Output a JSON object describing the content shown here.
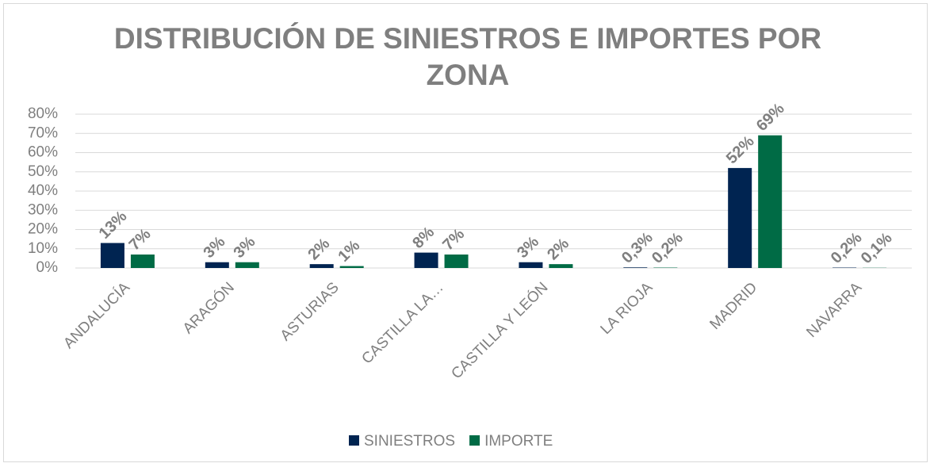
{
  "chart_data": {
    "type": "bar",
    "title": "DISTRIBUCIÓN DE SINIESTROS E IMPORTES POR ZONA",
    "categories": [
      "ANDALUCÍA",
      "ARAGÓN",
      "ASTURIAS",
      "CASTILLA LA…",
      "CASTILLA Y LEÓN",
      "LA RIOJA",
      "MADRID",
      "NAVARRA"
    ],
    "series": [
      {
        "name": "SINIESTROS",
        "color": "#002451",
        "values": [
          13,
          3,
          2,
          8,
          3,
          0.3,
          52,
          0.2
        ],
        "value_labels": [
          "13%",
          "3%",
          "2%",
          "8%",
          "3%",
          "0,3%",
          "52%",
          "0,2%"
        ]
      },
      {
        "name": "IMPORTE",
        "color": "#006b45",
        "values": [
          7,
          3,
          1,
          7,
          2,
          0.2,
          69,
          0.1
        ],
        "value_labels": [
          "7%",
          "3%",
          "1%",
          "7%",
          "2%",
          "0,2%",
          "69%",
          "0,1%"
        ]
      }
    ],
    "ylim": [
      0,
      80
    ],
    "yticks": [
      {
        "value": 0,
        "label": "0%"
      },
      {
        "value": 10,
        "label": "10%"
      },
      {
        "value": 20,
        "label": "20%"
      },
      {
        "value": 30,
        "label": "30%"
      },
      {
        "value": 40,
        "label": "40%"
      },
      {
        "value": 50,
        "label": "50%"
      },
      {
        "value": 60,
        "label": "60%"
      },
      {
        "value": 70,
        "label": "70%"
      },
      {
        "value": 80,
        "label": "80%"
      }
    ],
    "grid": true,
    "legend": "bottom"
  }
}
